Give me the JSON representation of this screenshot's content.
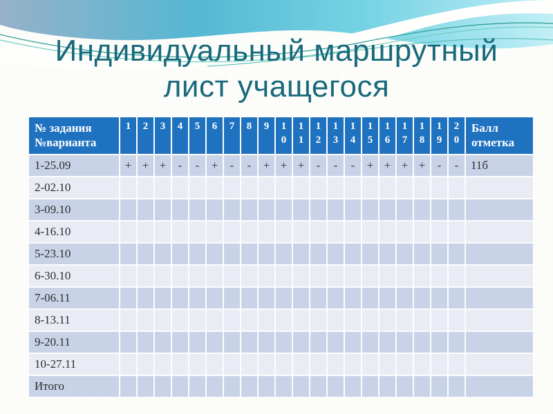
{
  "slide": {
    "title_line1": "Индивидуальный маршрутный",
    "title_line2": "лист учащегося"
  },
  "table": {
    "header": {
      "first_col": "№ задания №варианта",
      "task_numbers": [
        "1",
        "2",
        "3",
        "4",
        "5",
        "6",
        "7",
        "8",
        "9",
        "10",
        "11",
        "12",
        "13",
        "14",
        "15",
        "16",
        "17",
        "18",
        "19",
        "20"
      ],
      "score_col": "Балл отметка"
    },
    "rows": [
      {
        "label": "1-25.09",
        "marks": [
          "+",
          "+",
          "+",
          "-",
          "-",
          "+",
          "-",
          "-",
          "+",
          "+",
          "+",
          "-",
          "-",
          "-",
          "+",
          "+",
          "+",
          "+",
          "-",
          "-"
        ],
        "score": "11б"
      },
      {
        "label": "2-02.10",
        "marks": [],
        "score": ""
      },
      {
        "label": "3-09.10",
        "marks": [],
        "score": ""
      },
      {
        "label": "4-16.10",
        "marks": [],
        "score": ""
      },
      {
        "label": "5-23.10",
        "marks": [],
        "score": ""
      },
      {
        "label": "6-30.10",
        "marks": [],
        "score": ""
      },
      {
        "label": "7-06.11",
        "marks": [],
        "score": ""
      },
      {
        "label": "8-13.11",
        "marks": [],
        "score": ""
      },
      {
        "label": "9-20.11",
        "marks": [],
        "score": ""
      },
      {
        "label": "10-27.11",
        "marks": [],
        "score": ""
      },
      {
        "label": "Итого",
        "marks": [],
        "score": ""
      }
    ]
  },
  "colors": {
    "header_bg": "#1F72C0",
    "row_dark": "#C9D3E8",
    "row_light": "#E9ECF5",
    "title_color": "#17697B",
    "banner_steel_blue": "#97B1C8",
    "banner_cyan": "#55B7D3",
    "banner_light_cyan": "#9FE2EE",
    "wave_line_teal": "#2EA094"
  }
}
